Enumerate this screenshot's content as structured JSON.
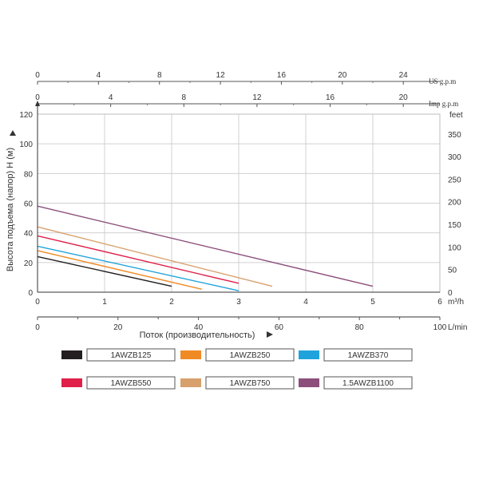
{
  "chart_data": {
    "type": "line",
    "ylabel": "Высота подъема (напор) Н (м)",
    "xlabel": "Поток (производительность)",
    "y_axis": {
      "range": [
        0,
        120
      ],
      "ticks": [
        0,
        20,
        40,
        60,
        80,
        100,
        120
      ]
    },
    "feet_axis": {
      "unit": "feet",
      "range": [
        0,
        393.7
      ],
      "ticks": [
        0,
        50,
        100,
        150,
        200,
        250,
        300,
        350
      ]
    },
    "m3h_axis": {
      "unit": "m³/h",
      "range": [
        0,
        6
      ],
      "ticks": [
        0,
        1,
        2,
        3,
        4,
        5,
        6
      ]
    },
    "lmin_axis": {
      "unit": "L/min",
      "range": [
        0,
        100
      ],
      "ticks": [
        0,
        20,
        40,
        60,
        80,
        100
      ]
    },
    "us_axis": {
      "unit": "US g.p.m",
      "range": [
        0,
        26.4
      ],
      "ticks": [
        0,
        4,
        8,
        12,
        16,
        20,
        24
      ]
    },
    "imp_axis": {
      "unit": "Imp g.p.m",
      "range": [
        0,
        22
      ],
      "ticks": [
        0,
        4,
        8,
        12,
        16,
        20
      ]
    },
    "grid": true,
    "legend_position": "bottom",
    "series": [
      {
        "name": "1AWZB125",
        "color": "#231f20",
        "x": [
          0,
          2.0
        ],
        "y": [
          24,
          4
        ]
      },
      {
        "name": "1AWZB250",
        "color": "#f08a24",
        "x": [
          0,
          2.45
        ],
        "y": [
          28,
          2
        ]
      },
      {
        "name": "1AWZB370",
        "color": "#20a3dc",
        "x": [
          0,
          3.0
        ],
        "y": [
          31,
          1
        ]
      },
      {
        "name": "1AWZB550",
        "color": "#e0204a",
        "x": [
          0,
          3.0
        ],
        "y": [
          38,
          6
        ]
      },
      {
        "name": "1AWZB750",
        "color": "#d8a06c",
        "x": [
          0,
          3.5
        ],
        "y": [
          44,
          4
        ]
      },
      {
        "name": "1.5AWZB1100",
        "color": "#8c4f7c",
        "x": [
          0,
          5.0
        ],
        "y": [
          58,
          4
        ]
      }
    ]
  }
}
